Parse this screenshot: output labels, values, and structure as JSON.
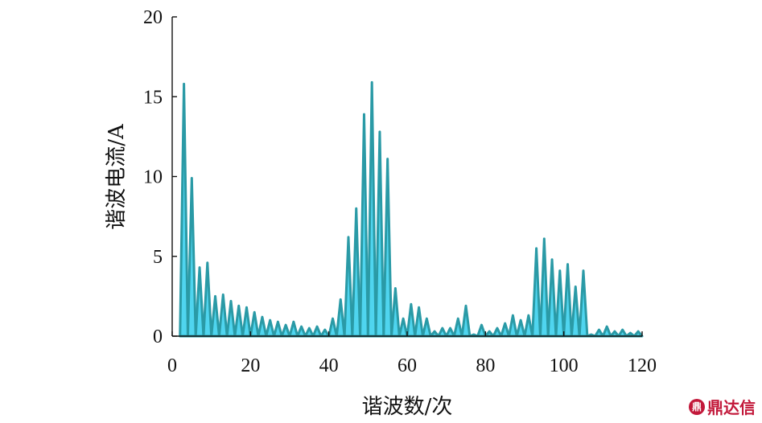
{
  "chart_data": {
    "type": "area",
    "title": "",
    "xlabel": "谐波数/次",
    "ylabel": "谐波电流/A",
    "xlim": [
      0,
      120
    ],
    "ylim": [
      0,
      20
    ],
    "x_ticks": [
      "0",
      "20",
      "40",
      "60",
      "80",
      "100",
      "120"
    ],
    "y_ticks": [
      "0",
      "5",
      "10",
      "15",
      "20"
    ],
    "grid": false,
    "colors": {
      "fill": "#4fd5ef",
      "line": "#2a9aa6"
    },
    "peaks": [
      {
        "x": 3,
        "y": 15.8
      },
      {
        "x": 5,
        "y": 9.9
      },
      {
        "x": 7,
        "y": 4.3
      },
      {
        "x": 9,
        "y": 4.6
      },
      {
        "x": 11,
        "y": 2.5
      },
      {
        "x": 13,
        "y": 2.6
      },
      {
        "x": 15,
        "y": 2.2
      },
      {
        "x": 17,
        "y": 1.9
      },
      {
        "x": 19,
        "y": 1.8
      },
      {
        "x": 21,
        "y": 1.5
      },
      {
        "x": 23,
        "y": 1.2
      },
      {
        "x": 25,
        "y": 1.0
      },
      {
        "x": 27,
        "y": 0.9
      },
      {
        "x": 29,
        "y": 0.7
      },
      {
        "x": 31,
        "y": 0.9
      },
      {
        "x": 33,
        "y": 0.6
      },
      {
        "x": 35,
        "y": 0.5
      },
      {
        "x": 37,
        "y": 0.6
      },
      {
        "x": 39,
        "y": 0.4
      },
      {
        "x": 41,
        "y": 1.1
      },
      {
        "x": 43,
        "y": 2.3
      },
      {
        "x": 45,
        "y": 6.2
      },
      {
        "x": 47,
        "y": 8.0
      },
      {
        "x": 49,
        "y": 13.9
      },
      {
        "x": 51,
        "y": 15.9
      },
      {
        "x": 53,
        "y": 12.8
      },
      {
        "x": 55,
        "y": 11.1
      },
      {
        "x": 57,
        "y": 3.0
      },
      {
        "x": 59,
        "y": 1.1
      },
      {
        "x": 61,
        "y": 2.0
      },
      {
        "x": 63,
        "y": 1.8
      },
      {
        "x": 65,
        "y": 1.1
      },
      {
        "x": 67,
        "y": 0.3
      },
      {
        "x": 69,
        "y": 0.5
      },
      {
        "x": 71,
        "y": 0.5
      },
      {
        "x": 73,
        "y": 1.1
      },
      {
        "x": 75,
        "y": 1.9
      },
      {
        "x": 77,
        "y": 0.1
      },
      {
        "x": 79,
        "y": 0.7
      },
      {
        "x": 81,
        "y": 0.3
      },
      {
        "x": 83,
        "y": 0.5
      },
      {
        "x": 85,
        "y": 0.8
      },
      {
        "x": 87,
        "y": 1.3
      },
      {
        "x": 89,
        "y": 1.0
      },
      {
        "x": 91,
        "y": 1.3
      },
      {
        "x": 93,
        "y": 5.5
      },
      {
        "x": 95,
        "y": 6.1
      },
      {
        "x": 97,
        "y": 4.8
      },
      {
        "x": 99,
        "y": 4.1
      },
      {
        "x": 101,
        "y": 4.5
      },
      {
        "x": 103,
        "y": 3.1
      },
      {
        "x": 105,
        "y": 4.1
      },
      {
        "x": 107,
        "y": 0.1
      },
      {
        "x": 109,
        "y": 0.4
      },
      {
        "x": 111,
        "y": 0.6
      },
      {
        "x": 113,
        "y": 0.3
      },
      {
        "x": 115,
        "y": 0.4
      },
      {
        "x": 117,
        "y": 0.2
      },
      {
        "x": 119,
        "y": 0.3
      }
    ]
  },
  "watermark": {
    "logo_glyph": "鼎",
    "text": "鼎达信"
  }
}
